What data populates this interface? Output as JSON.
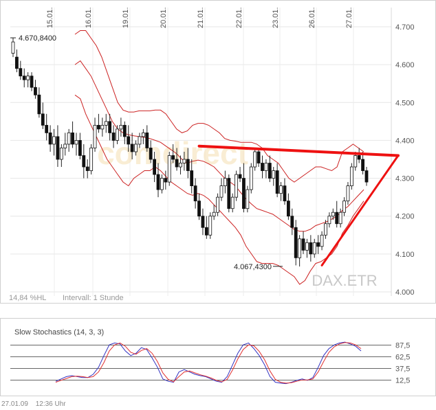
{
  "footer": {
    "date": "27.01.09",
    "time": "12:36 Uhr"
  },
  "chart_data": [
    {
      "type": "candlestick",
      "title": "",
      "instrument_label": "DAX.ETR",
      "watermark": "comdirect",
      "info_left": "14,84 %HL",
      "info_interval": "Intervall: 1 Stunde",
      "date_labels": [
        "15.01.",
        "16.01.",
        "19.01.",
        "20.01.",
        "21.01.",
        "22.01.",
        "23.01.",
        "26.01.",
        "27.01."
      ],
      "y_ticks": [
        "4.700",
        "4.600",
        "4.500",
        "4.400",
        "4.300",
        "4.200",
        "4.100",
        "4.000"
      ],
      "y_tick_values": [
        4700,
        4600,
        4500,
        4400,
        4300,
        4200,
        4100,
        4000
      ],
      "ylim": [
        4000,
        4700
      ],
      "grid": true,
      "high_annotation": {
        "label": "4.670,8400",
        "value": 4670.84
      },
      "low_annotation": {
        "label": "4.067,4300",
        "value": 4067.43
      },
      "ohlc": [
        [
          4630,
          4670,
          4620,
          4660
        ],
        [
          4620,
          4640,
          4580,
          4590
        ],
        [
          4590,
          4610,
          4560,
          4570
        ],
        [
          4570,
          4590,
          4540,
          4560
        ],
        [
          4560,
          4580,
          4540,
          4570
        ],
        [
          4570,
          4580,
          4530,
          4540
        ],
        [
          4540,
          4560,
          4510,
          4520
        ],
        [
          4520,
          4540,
          4460,
          4470
        ],
        [
          4470,
          4500,
          4430,
          4440
        ],
        [
          4440,
          4470,
          4400,
          4420
        ],
        [
          4420,
          4440,
          4370,
          4390
        ],
        [
          4390,
          4430,
          4360,
          4410
        ],
        [
          4410,
          4440,
          4330,
          4350
        ],
        [
          4350,
          4390,
          4330,
          4380
        ],
        [
          4380,
          4420,
          4360,
          4390
        ],
        [
          4390,
          4430,
          4370,
          4420
        ],
        [
          4420,
          4450,
          4380,
          4390
        ],
        [
          4390,
          4420,
          4360,
          4400
        ],
        [
          4400,
          4420,
          4350,
          4360
        ],
        [
          4360,
          4390,
          4300,
          4330
        ],
        [
          4330,
          4350,
          4300,
          4320
        ],
        [
          4320,
          4390,
          4310,
          4380
        ],
        [
          4380,
          4460,
          4370,
          4440
        ],
        [
          4440,
          4470,
          4420,
          4430
        ],
        [
          4430,
          4460,
          4410,
          4440
        ],
        [
          4440,
          4470,
          4420,
          4450
        ],
        [
          4450,
          4470,
          4400,
          4420
        ],
        [
          4420,
          4440,
          4380,
          4400
        ],
        [
          4400,
          4440,
          4390,
          4430
        ],
        [
          4430,
          4460,
          4410,
          4440
        ],
        [
          4440,
          4450,
          4390,
          4410
        ],
        [
          4410,
          4440,
          4370,
          4390
        ],
        [
          4390,
          4420,
          4350,
          4370
        ],
        [
          4370,
          4400,
          4360,
          4390
        ],
        [
          4390,
          4420,
          4380,
          4410
        ],
        [
          4410,
          4430,
          4390,
          4420
        ],
        [
          4420,
          4440,
          4370,
          4380
        ],
        [
          4380,
          4400,
          4340,
          4350
        ],
        [
          4350,
          4370,
          4290,
          4310
        ],
        [
          4310,
          4340,
          4250,
          4270
        ],
        [
          4270,
          4310,
          4260,
          4300
        ],
        [
          4300,
          4320,
          4270,
          4290
        ],
        [
          4290,
          4370,
          4280,
          4360
        ],
        [
          4360,
          4390,
          4340,
          4350
        ],
        [
          4350,
          4380,
          4320,
          4330
        ],
        [
          4330,
          4360,
          4310,
          4340
        ],
        [
          4340,
          4370,
          4320,
          4350
        ],
        [
          4350,
          4380,
          4300,
          4320
        ],
        [
          4320,
          4350,
          4260,
          4280
        ],
        [
          4280,
          4300,
          4220,
          4240
        ],
        [
          4240,
          4260,
          4190,
          4200
        ],
        [
          4200,
          4220,
          4150,
          4170
        ],
        [
          4170,
          4200,
          4140,
          4150
        ],
        [
          4150,
          4210,
          4140,
          4200
        ],
        [
          4200,
          4230,
          4190,
          4210
        ],
        [
          4210,
          4260,
          4200,
          4250
        ],
        [
          4250,
          4300,
          4240,
          4280
        ],
        [
          4280,
          4320,
          4260,
          4300
        ],
        [
          4300,
          4310,
          4210,
          4220
        ],
        [
          4220,
          4260,
          4210,
          4250
        ],
        [
          4250,
          4320,
          4240,
          4310
        ],
        [
          4310,
          4330,
          4290,
          4300
        ],
        [
          4300,
          4340,
          4210,
          4220
        ],
        [
          4220,
          4280,
          4210,
          4270
        ],
        [
          4270,
          4340,
          4260,
          4330
        ],
        [
          4330,
          4380,
          4320,
          4370
        ],
        [
          4370,
          4380,
          4330,
          4340
        ],
        [
          4340,
          4360,
          4300,
          4320
        ],
        [
          4320,
          4350,
          4300,
          4340
        ],
        [
          4340,
          4360,
          4290,
          4300
        ],
        [
          4300,
          4330,
          4280,
          4320
        ],
        [
          4320,
          4340,
          4250,
          4260
        ],
        [
          4260,
          4290,
          4240,
          4280
        ],
        [
          4280,
          4300,
          4230,
          4240
        ],
        [
          4240,
          4260,
          4190,
          4200
        ],
        [
          4200,
          4220,
          4150,
          4170
        ],
        [
          4170,
          4190,
          4070,
          4090
        ],
        [
          4090,
          4150,
          4067,
          4140
        ],
        [
          4140,
          4160,
          4100,
          4110
        ],
        [
          4110,
          4140,
          4090,
          4130
        ],
        [
          4130,
          4150,
          4080,
          4100
        ],
        [
          4100,
          4140,
          4090,
          4130
        ],
        [
          4130,
          4150,
          4100,
          4120
        ],
        [
          4120,
          4160,
          4110,
          4150
        ],
        [
          4150,
          4190,
          4140,
          4180
        ],
        [
          4180,
          4210,
          4170,
          4200
        ],
        [
          4200,
          4220,
          4190,
          4210
        ],
        [
          4210,
          4240,
          4170,
          4180
        ],
        [
          4180,
          4220,
          4170,
          4210
        ],
        [
          4210,
          4250,
          4200,
          4240
        ],
        [
          4240,
          4290,
          4230,
          4280
        ],
        [
          4280,
          4340,
          4270,
          4330
        ],
        [
          4330,
          4370,
          4320,
          4360
        ],
        [
          4360,
          4380,
          4340,
          4350
        ],
        [
          4350,
          4370,
          4310,
          4320
        ],
        [
          4320,
          4330,
          4280,
          4290
        ]
      ],
      "bollinger": {
        "upper": [
          4680,
          4690,
          4690,
          4670,
          4650,
          4620,
          4580,
          4540,
          4500,
          4480,
          4475,
          4475,
          4478,
          4478,
          4478,
          4480,
          4480,
          4470,
          4450,
          4430,
          4420,
          4425,
          4440,
          4445,
          4445,
          4440,
          4430,
          4420,
          4405,
          4400,
          4398,
          4395,
          4395,
          4395,
          4390,
          4380,
          4360,
          4350,
          4340,
          4320,
          4300,
          4290,
          4300,
          4310,
          4320,
          4330,
          4330,
          4325,
          4320,
          4330,
          4370,
          4380,
          4390,
          4380,
          4370
        ],
        "middle": [
          4600,
          4610,
          4590,
          4570,
          4540,
          4510,
          4480,
          4450,
          4430,
          4420,
          4415,
          4412,
          4410,
          4408,
          4405,
          4400,
          4395,
          4385,
          4375,
          4365,
          4350,
          4340,
          4345,
          4348,
          4345,
          4338,
          4330,
          4315,
          4300,
          4290,
          4280,
          4262,
          4245,
          4232,
          4220,
          4215,
          4210,
          4205,
          4195,
          4185,
          4175,
          4165,
          4160,
          4160,
          4165,
          4175,
          4180,
          4185,
          4192,
          4200,
          4215,
          4225,
          4240,
          4255,
          4270
        ],
        "lower": [
          4520,
          4510,
          4470,
          4440,
          4410,
          4380,
          4350,
          4330,
          4310,
          4290,
          4280,
          4300,
          4310,
          4320,
          4320,
          4330,
          4320,
          4305,
          4290,
          4280,
          4270,
          4260,
          4255,
          4260,
          4255,
          4245,
          4230,
          4215,
          4200,
          4185,
          4170,
          4150,
          4120,
          4100,
          4080,
          4075,
          4075,
          4075,
          4070,
          4060,
          4050,
          4040,
          4020,
          4030,
          4055,
          4075,
          4080,
          4090,
          4100,
          4120,
          4155,
          4175,
          4200,
          4220,
          4240
        ]
      },
      "trend_lines": [
        {
          "name": "resistance",
          "from": [
            50,
            4385
          ],
          "to": [
            111,
            4360
          ]
        },
        {
          "name": "support",
          "from": [
            83,
            4070
          ],
          "to": [
            111,
            4360
          ]
        }
      ]
    },
    {
      "type": "line",
      "title": "Slow Stochastics (14, 3, 3)",
      "y_ticks": [
        "87,5",
        "62,5",
        "37,5",
        "12,5"
      ],
      "y_tick_values": [
        87.5,
        62.5,
        37.5,
        12.5
      ],
      "ylim": [
        0,
        100
      ],
      "series": [
        {
          "name": "%K",
          "color": "#3030c0",
          "values": [
            10,
            15,
            20,
            22,
            20,
            18,
            18,
            25,
            40,
            65,
            88,
            92,
            90,
            75,
            65,
            70,
            82,
            78,
            60,
            40,
            15,
            10,
            8,
            30,
            35,
            30,
            25,
            22,
            20,
            15,
            10,
            8,
            20,
            45,
            70,
            88,
            92,
            80,
            65,
            45,
            20,
            8,
            6,
            5,
            8,
            12,
            15,
            12,
            18,
            40,
            65,
            80,
            88,
            92,
            94,
            90,
            85,
            75
          ]
        },
        {
          "name": "%D",
          "color": "#e03030",
          "values": [
            8,
            12,
            16,
            20,
            21,
            20,
            18,
            20,
            30,
            50,
            75,
            88,
            92,
            85,
            72,
            68,
            76,
            80,
            70,
            52,
            28,
            14,
            9,
            20,
            30,
            32,
            28,
            24,
            21,
            17,
            12,
            9,
            14,
            34,
            58,
            78,
            88,
            86,
            74,
            56,
            32,
            14,
            8,
            6,
            7,
            10,
            13,
            13,
            15,
            30,
            52,
            72,
            84,
            90,
            93,
            92,
            88,
            80
          ]
        }
      ]
    }
  ]
}
